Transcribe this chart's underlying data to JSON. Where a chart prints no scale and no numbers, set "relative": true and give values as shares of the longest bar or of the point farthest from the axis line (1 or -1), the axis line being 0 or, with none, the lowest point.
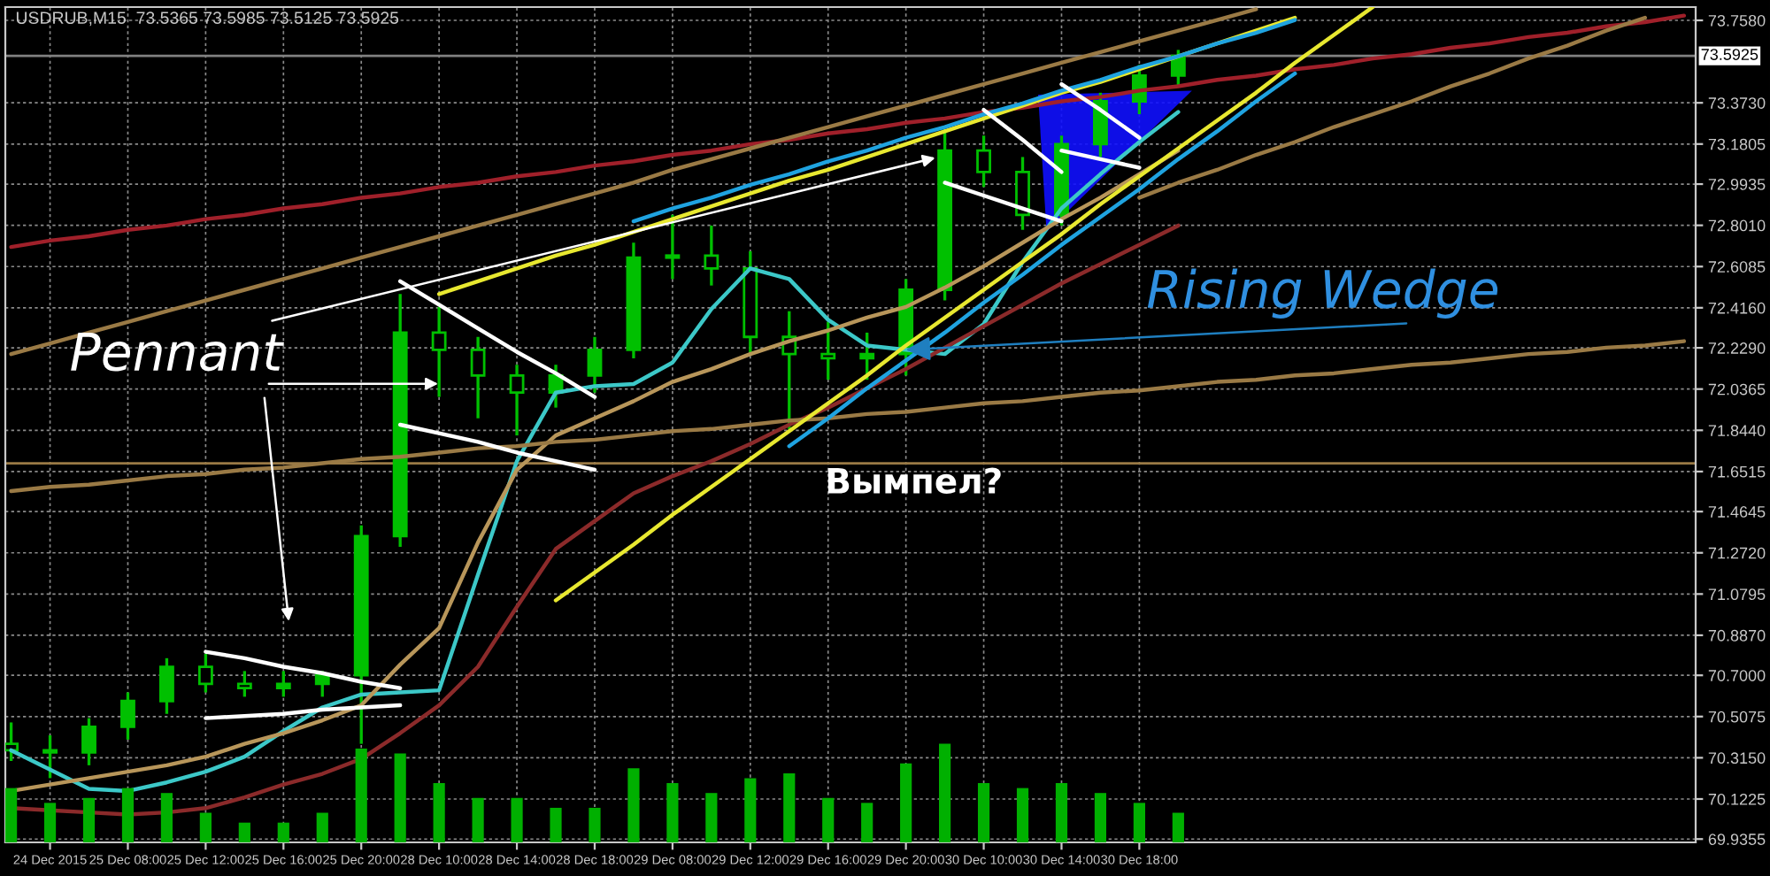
{
  "chart_data": [
    {
      "type": "candlestick",
      "title": "USDRUB,M15  73.5365 73.5985 73.5125 73.5925",
      "categories": [
        null,
        "24 Dec 2015",
        null,
        "25 Dec 08:00",
        null,
        "25 Dec 12:00",
        null,
        "25 Dec 16:00",
        null,
        "25 Dec 20:00",
        null,
        "28 Dec 10:00",
        null,
        "28 Dec 14:00",
        null,
        "28 Dec 18:00",
        null,
        "29 Dec 08:00",
        null,
        "29 Dec 12:00",
        null,
        "29 Dec 16:00",
        null,
        "29 Dec 20:00",
        null,
        "30 Dec 10:00",
        null,
        "30 Dec 14:00",
        null,
        "30 Dec 18:00",
        null,
        null,
        null,
        null,
        null,
        null,
        null,
        null,
        null,
        null,
        null,
        null,
        null,
        null
      ],
      "ohlc": [
        [
          70.38,
          70.48,
          70.3,
          70.35
        ],
        [
          70.35,
          70.42,
          70.22,
          70.34
        ],
        [
          70.34,
          70.5,
          70.28,
          70.46
        ],
        [
          70.46,
          70.62,
          70.4,
          70.58
        ],
        [
          70.58,
          70.78,
          70.52,
          70.74
        ],
        [
          70.74,
          70.8,
          70.62,
          70.66
        ],
        [
          70.66,
          70.72,
          70.6,
          70.64
        ],
        [
          70.64,
          70.72,
          70.6,
          70.66
        ],
        [
          70.66,
          70.72,
          70.6,
          70.7
        ],
        [
          70.7,
          71.4,
          70.38,
          71.35
        ],
        [
          71.35,
          72.48,
          71.3,
          72.3
        ],
        [
          72.3,
          72.42,
          72.0,
          72.22
        ],
        [
          72.22,
          72.28,
          71.9,
          72.1
        ],
        [
          72.1,
          72.15,
          71.82,
          72.02
        ],
        [
          72.02,
          72.15,
          71.95,
          72.1
        ],
        [
          72.1,
          72.28,
          72.02,
          72.22
        ],
        [
          72.22,
          72.72,
          72.18,
          72.65
        ],
        [
          72.65,
          72.85,
          72.55,
          72.66
        ],
        [
          72.66,
          72.8,
          72.52,
          72.6
        ],
        [
          72.6,
          72.68,
          72.2,
          72.28
        ],
        [
          72.28,
          72.4,
          71.85,
          72.2
        ],
        [
          72.2,
          72.35,
          72.08,
          72.18
        ],
        [
          72.18,
          72.3,
          72.08,
          72.2
        ],
        [
          72.2,
          72.55,
          72.1,
          72.5
        ],
        [
          72.5,
          73.25,
          72.45,
          73.15
        ],
        [
          73.15,
          73.22,
          72.98,
          73.05
        ],
        [
          73.05,
          73.12,
          72.78,
          72.85
        ],
        [
          72.85,
          73.22,
          72.8,
          73.18
        ],
        [
          73.18,
          73.42,
          73.12,
          73.38
        ],
        [
          73.38,
          73.55,
          73.32,
          73.5
        ],
        [
          73.5,
          73.62,
          73.45,
          73.5925
        ],
        null,
        null,
        null,
        null,
        null,
        null,
        null,
        null,
        null,
        null,
        null,
        null,
        null
      ],
      "color": "#00c000",
      "series": [
        {
          "type": "line",
          "color": "#3cc8c8",
          "values": [
            70.35,
            70.26,
            70.17,
            70.16,
            70.2,
            70.25,
            70.32,
            70.44,
            70.55,
            70.61,
            70.62,
            70.63,
            71.17,
            71.7,
            72.02,
            72.05,
            72.06,
            72.16,
            72.41,
            72.6,
            72.55,
            72.36,
            72.24,
            72.22,
            72.2,
            72.34,
            72.63,
            72.88,
            73.04,
            73.19,
            73.33,
            null,
            null,
            null,
            null,
            null,
            null,
            null,
            null,
            null,
            null,
            null,
            null,
            null
          ]
        },
        {
          "type": "line",
          "color": "#b8965a",
          "values": [
            70.16,
            70.19,
            70.22,
            70.25,
            70.28,
            70.32,
            70.38,
            70.43,
            70.49,
            70.56,
            70.75,
            70.92,
            71.32,
            71.66,
            71.82,
            71.9,
            71.98,
            72.07,
            72.13,
            72.2,
            72.26,
            72.31,
            72.37,
            72.42,
            72.51,
            72.61,
            72.72,
            72.83,
            72.93,
            73.04,
            73.15,
            null,
            null,
            null,
            null,
            null,
            null,
            null,
            null,
            null,
            null,
            null,
            null,
            null
          ]
        },
        {
          "type": "line",
          "color": "#8b2a2a",
          "values": [
            70.08,
            70.07,
            70.06,
            70.05,
            70.06,
            70.08,
            70.13,
            70.19,
            70.24,
            70.31,
            70.43,
            70.56,
            70.74,
            71.02,
            71.29,
            71.42,
            71.55,
            71.63,
            71.7,
            71.78,
            71.87,
            71.95,
            72.04,
            72.13,
            72.23,
            72.33,
            72.43,
            72.53,
            72.62,
            72.71,
            72.8,
            null,
            null,
            null,
            null,
            null,
            null,
            null,
            null,
            null,
            null,
            null,
            null,
            null
          ]
        },
        {
          "type": "line",
          "color": "#a0202a",
          "values": [
            72.7,
            72.73,
            72.75,
            72.78,
            72.8,
            72.83,
            72.85,
            72.88,
            72.9,
            72.93,
            72.95,
            72.98,
            73.0,
            73.03,
            73.05,
            73.08,
            73.1,
            73.13,
            73.15,
            73.18,
            73.2,
            73.23,
            73.25,
            73.28,
            73.3,
            73.33,
            73.35,
            73.38,
            73.4,
            73.43,
            73.45,
            73.48,
            73.5,
            73.53,
            73.55,
            73.58,
            73.6,
            73.63,
            73.65,
            73.68,
            73.7,
            73.73,
            73.75,
            73.78
          ]
        },
        {
          "type": "line",
          "color": "#9a7a45",
          "values": [
            72.2,
            72.25,
            72.3,
            72.35,
            72.4,
            72.45,
            72.5,
            72.55,
            72.6,
            72.65,
            72.7,
            72.75,
            72.8,
            72.85,
            72.9,
            72.95,
            73.0,
            73.06,
            73.11,
            73.16,
            73.21,
            73.26,
            73.31,
            73.36,
            73.41,
            73.46,
            73.51,
            73.56,
            73.61,
            73.66,
            73.71,
            73.76,
            73.81,
            null,
            null,
            null,
            null,
            null,
            null,
            null,
            null,
            null,
            null,
            null
          ]
        },
        {
          "type": "line",
          "color": "#9a7a45",
          "values": [
            71.56,
            71.58,
            71.59,
            71.61,
            71.63,
            71.64,
            71.66,
            71.67,
            71.69,
            71.71,
            71.72,
            71.74,
            71.76,
            71.77,
            71.79,
            71.8,
            71.82,
            71.84,
            71.85,
            71.87,
            71.89,
            71.9,
            71.92,
            71.93,
            71.95,
            71.97,
            71.98,
            72.0,
            72.02,
            72.03,
            72.05,
            72.07,
            72.08,
            72.1,
            72.11,
            72.13,
            72.15,
            72.16,
            72.18,
            72.2,
            72.21,
            72.23,
            72.24,
            72.26
          ]
        },
        {
          "type": "line",
          "color": "#9a7a45",
          "values": [
            null,
            null,
            null,
            null,
            null,
            null,
            null,
            null,
            null,
            null,
            null,
            null,
            null,
            null,
            null,
            null,
            null,
            null,
            null,
            null,
            null,
            null,
            null,
            null,
            null,
            null,
            null,
            null,
            null,
            72.93,
            73.0,
            73.06,
            73.13,
            73.19,
            73.26,
            73.32,
            73.38,
            73.45,
            73.51,
            73.58,
            73.64,
            73.71,
            73.77,
            null
          ]
        },
        {
          "type": "line",
          "color": "#e8e830",
          "values": [
            null,
            null,
            null,
            null,
            null,
            null,
            null,
            null,
            null,
            null,
            null,
            72.48,
            72.54,
            72.6,
            72.66,
            72.71,
            72.77,
            72.83,
            72.89,
            72.95,
            73.01,
            73.06,
            73.12,
            73.18,
            73.24,
            73.3,
            73.36,
            73.42,
            73.47,
            73.53,
            73.59,
            73.65,
            73.71,
            73.77,
            null,
            null,
            null,
            null,
            null,
            null,
            null,
            null,
            null,
            null
          ]
        },
        {
          "type": "line",
          "color": "#e8e830",
          "values": [
            null,
            null,
            null,
            null,
            null,
            null,
            null,
            null,
            null,
            null,
            null,
            null,
            null,
            null,
            71.05,
            71.18,
            71.31,
            71.45,
            71.58,
            71.71,
            71.84,
            71.97,
            72.1,
            72.24,
            72.37,
            72.5,
            72.63,
            72.76,
            72.9,
            73.03,
            73.16,
            73.29,
            73.42,
            73.56,
            73.69,
            73.82,
            null,
            null,
            null,
            null,
            null,
            null,
            null,
            null
          ]
        },
        {
          "type": "line",
          "color": "#1fa3e0",
          "values": [
            null,
            null,
            null,
            null,
            null,
            null,
            null,
            null,
            null,
            null,
            null,
            null,
            null,
            null,
            null,
            null,
            72.82,
            72.88,
            72.93,
            72.99,
            73.04,
            73.1,
            73.15,
            73.21,
            73.26,
            73.32,
            73.37,
            73.43,
            73.48,
            73.54,
            73.59,
            73.65,
            73.7,
            73.76,
            null,
            null,
            null,
            null,
            null,
            null,
            null,
            null,
            null,
            null
          ]
        },
        {
          "type": "line",
          "color": "#1fa3e0",
          "values": [
            null,
            null,
            null,
            null,
            null,
            null,
            null,
            null,
            null,
            null,
            null,
            null,
            null,
            null,
            null,
            null,
            null,
            null,
            null,
            null,
            71.77,
            71.9,
            72.04,
            72.17,
            72.3,
            72.44,
            72.57,
            72.71,
            72.84,
            72.97,
            73.11,
            73.24,
            73.38,
            73.51,
            null,
            null,
            null,
            null,
            null,
            null,
            null,
            null,
            null,
            null
          ]
        },
        {
          "type": "line",
          "color": "#ffffff",
          "values": [
            null,
            null,
            null,
            null,
            null,
            70.81,
            70.78,
            70.74,
            70.71,
            70.67,
            70.64,
            null,
            null,
            null,
            null,
            null,
            null,
            null,
            null,
            null,
            null,
            null,
            null,
            null,
            null,
            null,
            null,
            null,
            null,
            null,
            null,
            null,
            null,
            null,
            null,
            null,
            null,
            null,
            null,
            null,
            null,
            null,
            null,
            null
          ]
        },
        {
          "type": "line",
          "color": "#ffffff",
          "values": [
            null,
            null,
            null,
            null,
            null,
            70.5,
            70.51,
            70.52,
            70.54,
            70.55,
            70.56,
            null,
            null,
            null,
            null,
            null,
            null,
            null,
            null,
            null,
            null,
            null,
            null,
            null,
            null,
            null,
            null,
            null,
            null,
            null,
            null,
            null,
            null,
            null,
            null,
            null,
            null,
            null,
            null,
            null,
            null,
            null,
            null,
            null
          ]
        },
        {
          "type": "line",
          "color": "#ffffff",
          "values": [
            null,
            null,
            null,
            null,
            null,
            null,
            null,
            null,
            null,
            null,
            72.54,
            72.43,
            72.32,
            72.21,
            72.11,
            72.0,
            null,
            null,
            null,
            null,
            null,
            null,
            null,
            null,
            null,
            null,
            null,
            null,
            null,
            null,
            null,
            null,
            null,
            null,
            null,
            null,
            null,
            null,
            null,
            null,
            null,
            null,
            null,
            null
          ]
        },
        {
          "type": "line",
          "color": "#ffffff",
          "values": [
            null,
            null,
            null,
            null,
            null,
            null,
            null,
            null,
            null,
            null,
            71.87,
            71.83,
            71.79,
            71.74,
            71.7,
            71.66,
            null,
            null,
            null,
            null,
            null,
            null,
            null,
            null,
            null,
            null,
            null,
            null,
            null,
            null,
            null,
            null,
            null,
            null,
            null,
            null,
            null,
            null,
            null,
            null,
            null,
            null,
            null,
            null
          ]
        },
        {
          "type": "line",
          "color": "#ffffff",
          "values": [
            null,
            null,
            null,
            null,
            null,
            null,
            null,
            null,
            null,
            null,
            null,
            null,
            null,
            null,
            null,
            null,
            null,
            null,
            null,
            null,
            null,
            null,
            null,
            null,
            73.0,
            72.94,
            72.88,
            72.82,
            null,
            null,
            null,
            null,
            null,
            null,
            null,
            null,
            null,
            null,
            null,
            null,
            null,
            null,
            null,
            null
          ]
        },
        {
          "type": "line",
          "color": "#ffffff",
          "values": [
            null,
            null,
            null,
            null,
            null,
            null,
            null,
            null,
            null,
            null,
            null,
            null,
            null,
            null,
            null,
            null,
            null,
            null,
            null,
            null,
            null,
            null,
            null,
            null,
            null,
            73.34,
            73.2,
            73.05,
            null,
            null,
            null,
            null,
            null,
            null,
            null,
            null,
            null,
            null,
            null,
            null,
            null,
            null,
            null,
            null
          ]
        },
        {
          "type": "line",
          "color": "#ffffff",
          "values": [
            null,
            null,
            null,
            null,
            null,
            null,
            null,
            null,
            null,
            null,
            null,
            null,
            null,
            null,
            null,
            null,
            null,
            null,
            null,
            null,
            null,
            null,
            null,
            null,
            null,
            null,
            null,
            73.15,
            73.11,
            73.07,
            null,
            null,
            null,
            null,
            null,
            null,
            null,
            null,
            null,
            null,
            null,
            null,
            null,
            null
          ]
        },
        {
          "type": "line",
          "color": "#ffffff",
          "values": [
            null,
            null,
            null,
            null,
            null,
            null,
            null,
            null,
            null,
            null,
            null,
            null,
            null,
            null,
            null,
            null,
            null,
            null,
            null,
            null,
            null,
            null,
            null,
            null,
            null,
            null,
            null,
            73.46,
            73.34,
            73.21,
            null,
            null,
            null,
            null,
            null,
            null,
            null,
            null,
            null,
            null,
            null,
            null,
            null,
            null
          ]
        }
      ],
      "ref_lines": [
        {
          "axis": "y",
          "value": 73.5925,
          "label": "73.5925",
          "color": "#808080"
        },
        {
          "axis": "y",
          "value": 71.69,
          "color": "#9a7a45"
        }
      ],
      "annotations": [
        "Pennant",
        {
          "text": "Rising Wedge",
          "x": "29 Dec 20:00",
          "y": 72.22
        },
        "Вымпел?"
      ],
      "ylim": [
        69.92,
        73.82
      ],
      "yticks": [
        69.9355,
        72.0365,
        {
          "value": 70.1225,
          "label": "70.1225"
        },
        {
          "value": 70.315,
          "label": "70.3150"
        },
        70.5075,
        {
          "value": 70.7,
          "label": "70.7000"
        },
        {
          "value": 70.887,
          "label": "70.8870"
        },
        71.0795,
        {
          "value": 71.272,
          "label": "71.2720"
        },
        71.4645,
        71.6515,
        {
          "value": 71.844,
          "label": "71.8440"
        },
        {
          "value": 72.229,
          "label": "72.2290"
        },
        {
          "value": 72.416,
          "label": "72.4160"
        },
        72.6085,
        {
          "value": 72.801,
          "label": "72.8010"
        },
        72.9935,
        73.1805,
        {
          "value": 73.373,
          "label": "73.3730"
        },
        {
          "value": 73.758,
          "label": "73.7580"
        }
      ],
      "grid": true
    },
    {
      "type": "bar",
      "relative": true,
      "color": "#00b000",
      "categories": [
        null,
        null,
        null,
        null,
        null,
        null,
        null,
        null,
        null,
        null,
        null,
        null,
        null,
        null,
        null,
        null,
        null,
        null,
        null,
        null,
        null,
        null,
        null,
        null,
        null,
        null,
        null,
        null,
        null,
        null,
        null,
        null,
        null,
        null,
        null,
        null,
        null,
        null,
        null,
        null,
        null,
        null,
        null,
        null
      ],
      "values": [
        0.55,
        0.4,
        0.45,
        0.55,
        0.5,
        0.3,
        0.2,
        0.2,
        0.3,
        0.95,
        0.9,
        0.6,
        0.45,
        0.45,
        0.35,
        0.35,
        0.75,
        0.6,
        0.5,
        0.65,
        0.7,
        0.45,
        0.4,
        0.8,
        1.0,
        0.6,
        0.55,
        0.6,
        0.5,
        0.4,
        0.3,
        null,
        null,
        null,
        null,
        null,
        null,
        null,
        null,
        null,
        null,
        null,
        null,
        null
      ]
    }
  ]
}
